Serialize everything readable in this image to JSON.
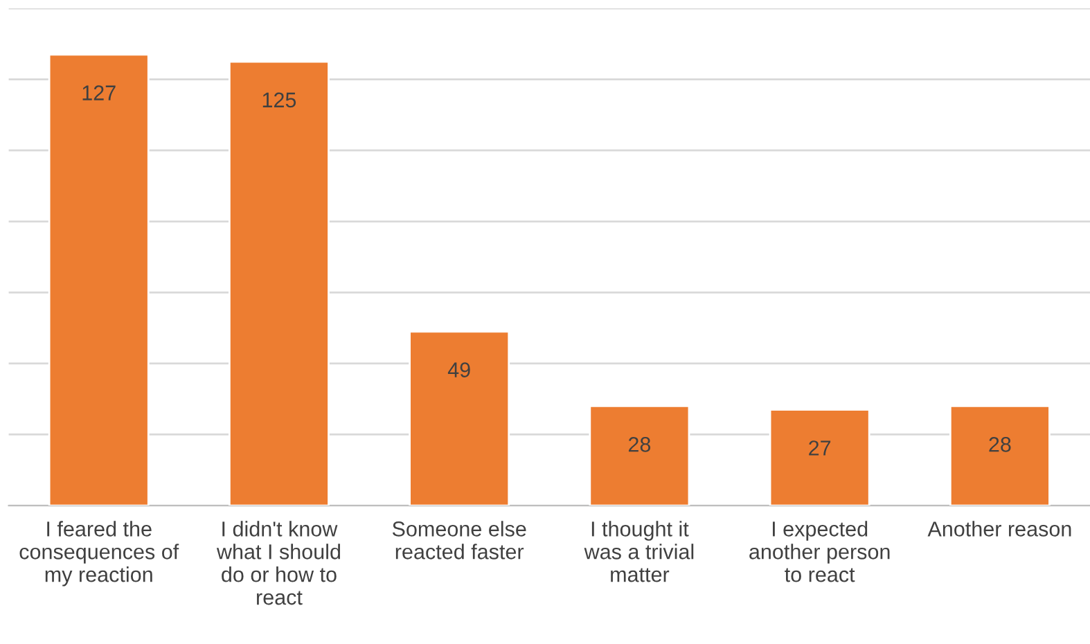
{
  "chart_data": {
    "type": "bar",
    "categories": [
      "I feared the consequences of my reaction",
      "I didn't know what I should do or how to react",
      "Someone else reacted faster",
      "I thought it was a trivial matter",
      "I expected another person to react",
      "Another reason"
    ],
    "values": [
      127,
      125,
      49,
      28,
      27,
      28
    ],
    "color": "#ed7d31",
    "data_labels": true,
    "ylim": [
      0,
      140
    ],
    "yticks": [
      {
        "value": 0,
        "label": null
      },
      {
        "value": 20,
        "label": null
      },
      {
        "value": 40,
        "label": null
      },
      {
        "value": 60,
        "label": null
      },
      {
        "value": 80,
        "label": null
      },
      {
        "value": 100,
        "label": null
      },
      {
        "value": 120,
        "label": null
      },
      {
        "value": 140,
        "label": null
      }
    ],
    "grid": "y",
    "tick_labels": "x"
  }
}
